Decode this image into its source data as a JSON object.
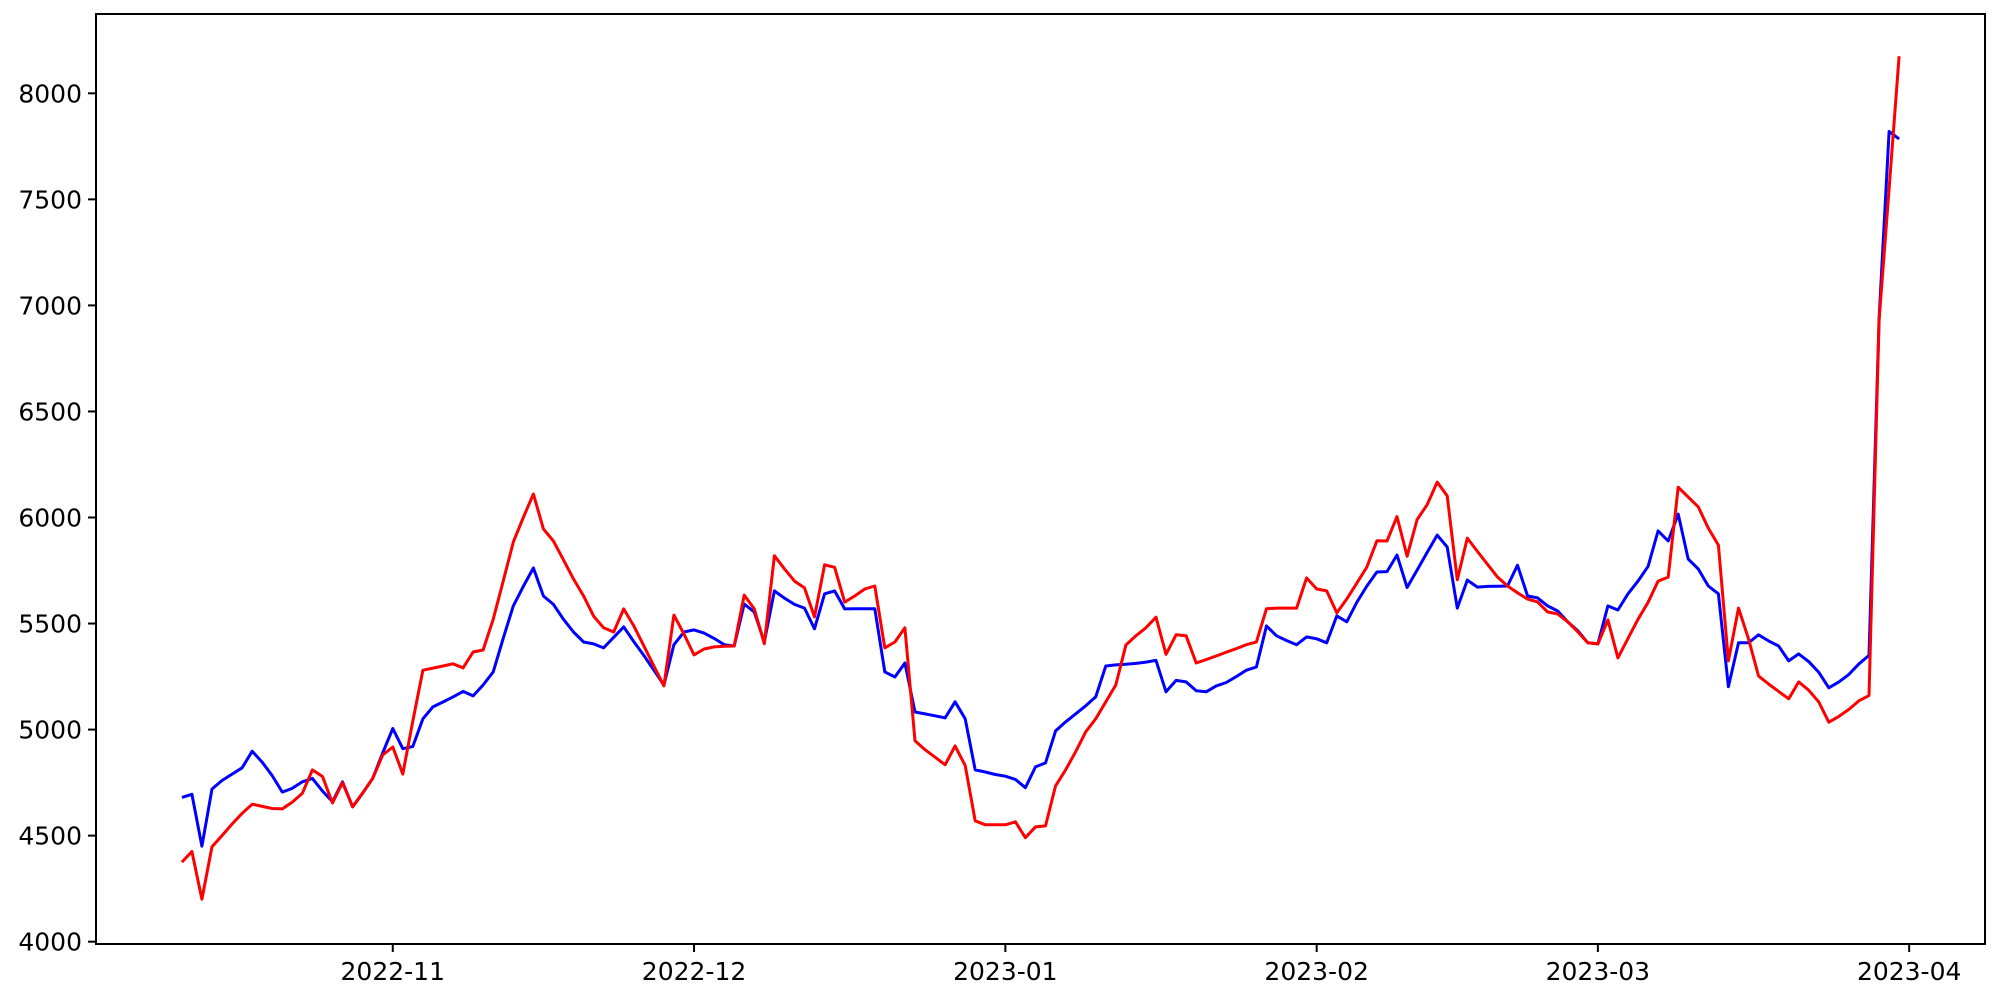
{
  "figure": {
    "background_color": "#ffffff",
    "border_color": "#000000"
  },
  "chart_data": {
    "type": "line",
    "title": "",
    "xlabel": "",
    "ylabel": "",
    "grid": false,
    "legend": null,
    "x_axis": {
      "frequency": "daily",
      "start_date": "2022-10-11",
      "end_date": "2023-03-31",
      "tick_labels": [
        "2022-11",
        "2022-12",
        "2023-01",
        "2023-02",
        "2023-03",
        "2023-04"
      ],
      "tick_day_index": [
        21,
        51,
        82,
        113,
        141,
        172
      ],
      "lim_days": [
        -8.55,
        179.55
      ]
    },
    "y_axis": {
      "tick_labels": [
        "4000",
        "4500",
        "5000",
        "5500",
        "6000",
        "6500",
        "7000",
        "7500",
        "8000"
      ],
      "ticks": [
        4000,
        4500,
        5000,
        5500,
        6000,
        6500,
        7000,
        7500,
        8000
      ],
      "lim": [
        3989,
        8374
      ]
    },
    "series": [
      {
        "name": "blue-line",
        "color": "#0000ff",
        "values": [
          4680,
          4695,
          4450,
          4720,
          4760,
          4790,
          4820,
          4898,
          4846,
          4783,
          4705,
          4723,
          4754,
          4770,
          4710,
          4660,
          4754,
          4636,
          4700,
          4770,
          4890,
          5005,
          4910,
          4920,
          5051,
          5107,
          5130,
          5154,
          5180,
          5159,
          5210,
          5272,
          5430,
          5583,
          5675,
          5762,
          5630,
          5590,
          5520,
          5460,
          5413,
          5404,
          5385,
          5435,
          5484,
          5415,
          5350,
          5280,
          5210,
          5400,
          5460,
          5470,
          5455,
          5430,
          5400,
          5394,
          5592,
          5554,
          5413,
          5654,
          5620,
          5590,
          5573,
          5475,
          5640,
          5654,
          5569,
          5570,
          5570,
          5570,
          5272,
          5248,
          5314,
          5083,
          5074,
          5065,
          5055,
          5131,
          5051,
          4810,
          4800,
          4788,
          4780,
          4765,
          4726,
          4824,
          4843,
          4994,
          5036,
          5074,
          5112,
          5154,
          5300,
          5305,
          5308,
          5312,
          5318,
          5326,
          5178,
          5232,
          5225,
          5183,
          5178,
          5206,
          5222,
          5250,
          5280,
          5295,
          5489,
          5442,
          5420,
          5400,
          5437,
          5428,
          5409,
          5536,
          5508,
          5600,
          5677,
          5743,
          5745,
          5823,
          5670,
          5752,
          5835,
          5917,
          5861,
          5573,
          5705,
          5672,
          5675,
          5676,
          5677,
          5775,
          5630,
          5621,
          5583,
          5559,
          5508,
          5466,
          5409,
          5404,
          5583,
          5564,
          5640,
          5700,
          5770,
          5937,
          5889,
          6016,
          5804,
          5757,
          5677,
          5640,
          5202,
          5409,
          5409,
          5447,
          5418,
          5394,
          5324,
          5357,
          5320,
          5270,
          5197,
          5225,
          5260,
          5310,
          5350,
          6940,
          7820,
          7785
        ]
      },
      {
        "name": "red-line",
        "color": "#ff0000",
        "values": [
          4375,
          4425,
          4200,
          4448,
          4500,
          4555,
          4605,
          4648,
          4638,
          4628,
          4626,
          4658,
          4700,
          4810,
          4779,
          4654,
          4750,
          4636,
          4700,
          4770,
          4880,
          4918,
          4790,
          5040,
          5280,
          5290,
          5300,
          5310,
          5291,
          5366,
          5375,
          5520,
          5700,
          5884,
          6000,
          6111,
          5946,
          5889,
          5800,
          5710,
          5630,
          5535,
          5480,
          5460,
          5569,
          5489,
          5395,
          5300,
          5206,
          5540,
          5450,
          5352,
          5380,
          5390,
          5393,
          5394,
          5634,
          5569,
          5405,
          5820,
          5758,
          5700,
          5668,
          5531,
          5777,
          5765,
          5601,
          5630,
          5663,
          5677,
          5385,
          5413,
          5480,
          4947,
          4905,
          4870,
          4834,
          4923,
          4830,
          4570,
          4551,
          4551,
          4551,
          4565,
          4490,
          4541,
          4546,
          4735,
          4810,
          4895,
          4989,
          5051,
          5131,
          5210,
          5399,
          5442,
          5480,
          5530,
          5355,
          5447,
          5442,
          5314,
          5330,
          5347,
          5365,
          5382,
          5400,
          5413,
          5570,
          5573,
          5573,
          5573,
          5715,
          5663,
          5654,
          5550,
          5616,
          5690,
          5767,
          5890,
          5889,
          6004,
          5817,
          5990,
          6060,
          6167,
          6102,
          5706,
          5903,
          5840,
          5780,
          5720,
          5677,
          5645,
          5615,
          5602,
          5555,
          5545,
          5508,
          5461,
          5409,
          5404,
          5517,
          5338,
          5430,
          5520,
          5600,
          5700,
          5719,
          6143,
          6096,
          6050,
          5950,
          5870,
          5324,
          5573,
          5428,
          5253,
          5215,
          5180,
          5145,
          5225,
          5185,
          5130,
          5035,
          5062,
          5095,
          5136,
          5160,
          6930,
          7550,
          8175
        ]
      }
    ]
  }
}
